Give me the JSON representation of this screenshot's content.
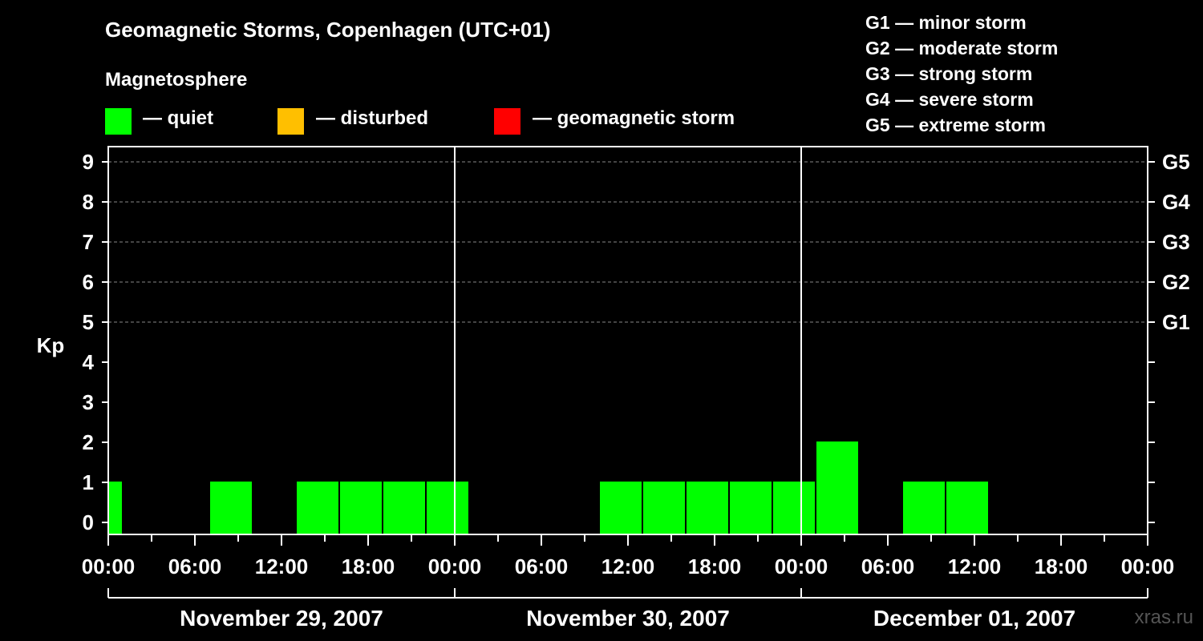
{
  "title": "Geomagnetic Storms, Copenhagen (UTC+01)",
  "magnetosphere": {
    "title": "Magnetosphere",
    "items": [
      {
        "label": "— quiet",
        "color": "#00ff00"
      },
      {
        "label": "— disturbed",
        "color": "#ffbf00"
      },
      {
        "label": "— geomagnetic storm",
        "color": "#ff0000"
      }
    ]
  },
  "g_legend": [
    "G1 — minor storm",
    "G2 — moderate storm",
    "G3 — strong storm",
    "G4 — severe storm",
    "G5 — extreme storm"
  ],
  "watermark": "xras.ru",
  "chart_data": {
    "type": "bar",
    "ylabel": "Kp",
    "ylim": [
      0,
      9
    ],
    "yticks": [
      0,
      1,
      2,
      3,
      4,
      5,
      6,
      7,
      8,
      9
    ],
    "y2ticks": [
      {
        "kp": 5,
        "label": "G1"
      },
      {
        "kp": 6,
        "label": "G2"
      },
      {
        "kp": 7,
        "label": "G3"
      },
      {
        "kp": 8,
        "label": "G4"
      },
      {
        "kp": 9,
        "label": "G5"
      }
    ],
    "xlim_hours": [
      0,
      72
    ],
    "xtick_labels": [
      "00:00",
      "06:00",
      "12:00",
      "18:00",
      "00:00",
      "06:00",
      "12:00",
      "18:00",
      "00:00",
      "06:00",
      "12:00",
      "18:00",
      "00:00"
    ],
    "xtick_hours": [
      0,
      6,
      12,
      18,
      24,
      30,
      36,
      42,
      48,
      54,
      60,
      66,
      72
    ],
    "day_labels": [
      "November 29, 2007",
      "November 30, 2007",
      "December 01, 2007"
    ],
    "day_dividers_hours": [
      24,
      48
    ],
    "bars": [
      {
        "start_hour": 0,
        "end_hour": 1,
        "kp": 1,
        "status": "quiet"
      },
      {
        "start_hour": 7,
        "end_hour": 10,
        "kp": 1,
        "status": "quiet"
      },
      {
        "start_hour": 13,
        "end_hour": 16,
        "kp": 1,
        "status": "quiet"
      },
      {
        "start_hour": 16,
        "end_hour": 19,
        "kp": 1,
        "status": "quiet"
      },
      {
        "start_hour": 19,
        "end_hour": 22,
        "kp": 1,
        "status": "quiet"
      },
      {
        "start_hour": 22,
        "end_hour": 25,
        "kp": 1,
        "status": "quiet"
      },
      {
        "start_hour": 34,
        "end_hour": 37,
        "kp": 1,
        "status": "quiet"
      },
      {
        "start_hour": 37,
        "end_hour": 40,
        "kp": 1,
        "status": "quiet"
      },
      {
        "start_hour": 40,
        "end_hour": 43,
        "kp": 1,
        "status": "quiet"
      },
      {
        "start_hour": 43,
        "end_hour": 46,
        "kp": 1,
        "status": "quiet"
      },
      {
        "start_hour": 46,
        "end_hour": 49,
        "kp": 1,
        "status": "quiet"
      },
      {
        "start_hour": 49,
        "end_hour": 52,
        "kp": 2,
        "status": "quiet"
      },
      {
        "start_hour": 55,
        "end_hour": 58,
        "kp": 1,
        "status": "quiet"
      },
      {
        "start_hour": 58,
        "end_hour": 61,
        "kp": 1,
        "status": "quiet"
      }
    ]
  }
}
